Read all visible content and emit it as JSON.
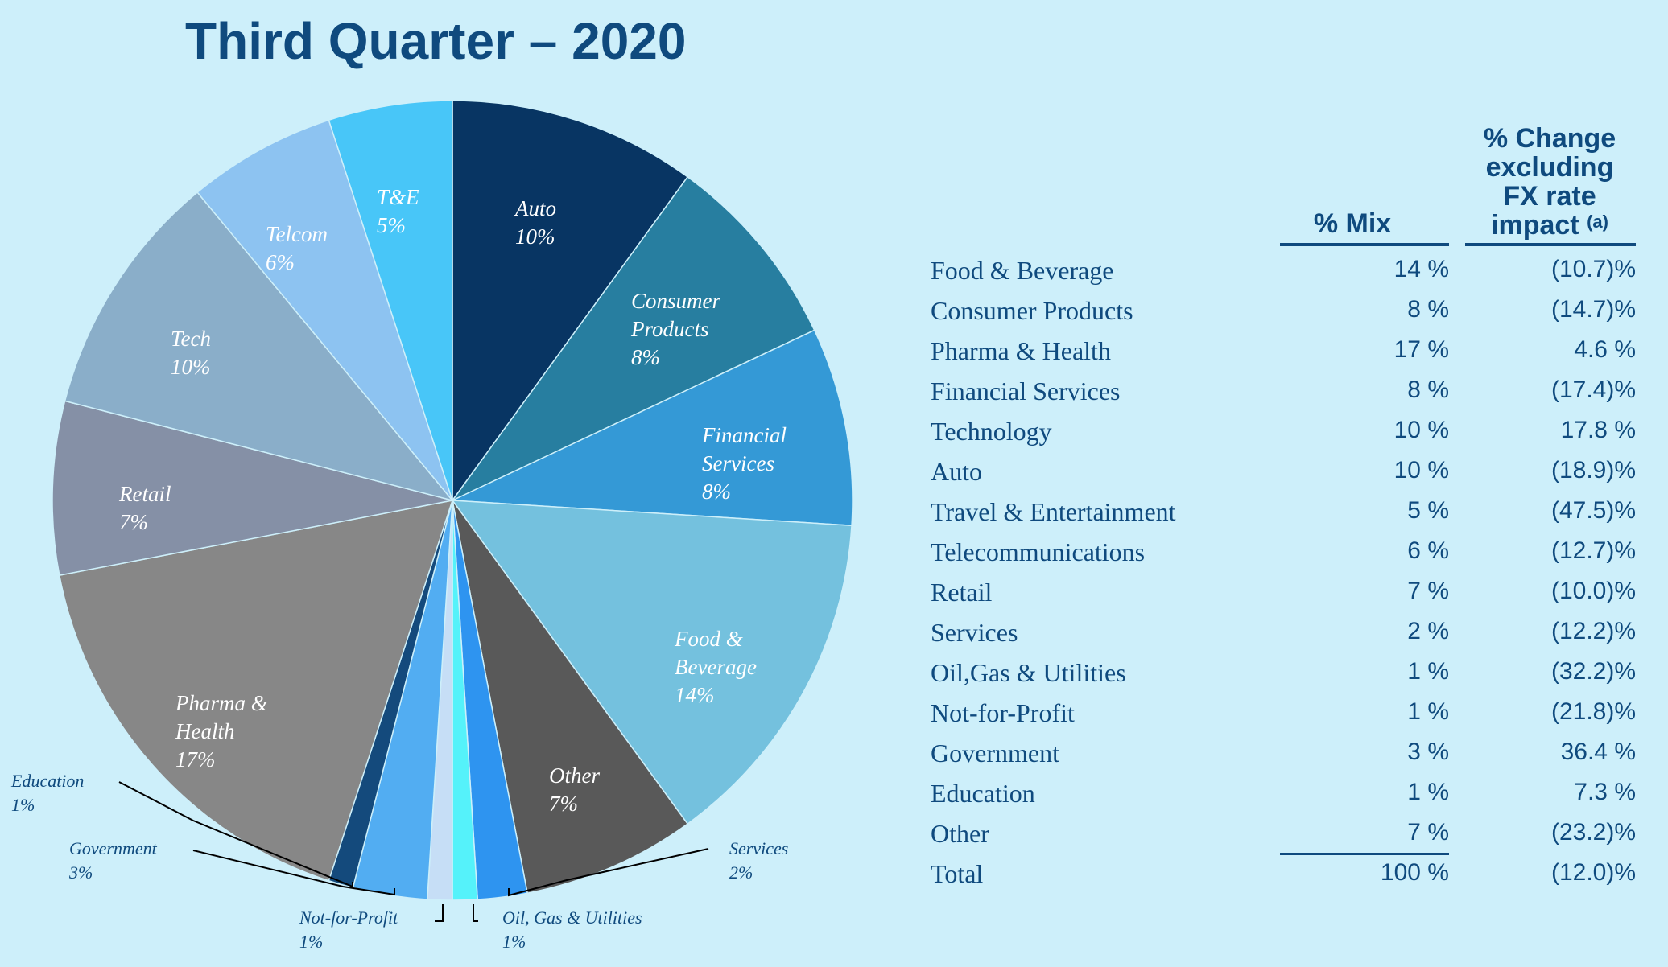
{
  "title": "Third Quarter – 2020",
  "chart_data": {
    "type": "pie",
    "title": "Third Quarter – 2020",
    "start_angle_deg": 0,
    "direction": "clockwise",
    "slices": [
      {
        "label": "Auto",
        "label_lines": [
          "Auto",
          "10%"
        ],
        "value": 10,
        "pct_label": "10%",
        "color": "#083563",
        "label_color": "#ffffff"
      },
      {
        "label": "Consumer Products",
        "label_lines": [
          "Consumer",
          "Products",
          "8%"
        ],
        "value": 8,
        "pct_label": "8%",
        "color": "#277ea0",
        "label_color": "#ffffff"
      },
      {
        "label": "Financial Services",
        "label_lines": [
          "Financial",
          "Services",
          "8%"
        ],
        "value": 8,
        "pct_label": "8%",
        "color": "#3499d6",
        "label_color": "#ffffff"
      },
      {
        "label": "Food & Beverage",
        "label_lines": [
          "Food &",
          "Beverage",
          "14%"
        ],
        "value": 14,
        "pct_label": "14%",
        "color": "#74c1de",
        "label_color": "#ffffff"
      },
      {
        "label": "Other",
        "label_lines": [
          "Other",
          "7%"
        ],
        "value": 7,
        "pct_label": "7%",
        "color": "#595959",
        "label_color": "#ffffff"
      },
      {
        "label": "Services",
        "label_lines": [
          "Services",
          "2%"
        ],
        "value": 2,
        "pct_label": "2%",
        "color": "#2e94f0",
        "label_color": "#0f4a7e",
        "outside": true
      },
      {
        "label": "Oil, Gas & Utilities",
        "label_lines": [
          "Oil, Gas & Utilities",
          "1%"
        ],
        "value": 1,
        "pct_label": "1%",
        "color": "#55f2fa",
        "label_color": "#0f4a7e",
        "outside": true
      },
      {
        "label": "Not-for-Profit",
        "label_lines": [
          "Not-for-Profit",
          "1%"
        ],
        "value": 1,
        "pct_label": "1%",
        "color": "#c6def6",
        "label_color": "#0f4a7e",
        "outside": true
      },
      {
        "label": "Government",
        "label_lines": [
          "Government",
          "3%"
        ],
        "value": 3,
        "pct_label": "3%",
        "color": "#52adf2",
        "label_color": "#0f4a7e",
        "outside": true
      },
      {
        "label": "Education",
        "label_lines": [
          "Education",
          "1%"
        ],
        "value": 1,
        "pct_label": "1%",
        "color": "#144a7c",
        "label_color": "#0f4a7e",
        "outside": true
      },
      {
        "label": "Pharma & Health",
        "label_lines": [
          "Pharma &",
          "Health",
          "17%"
        ],
        "value": 17,
        "pct_label": "17%",
        "color": "#878787",
        "label_color": "#ffffff"
      },
      {
        "label": "Retail",
        "label_lines": [
          "Retail",
          "7%"
        ],
        "value": 7,
        "pct_label": "7%",
        "color": "#8590a6",
        "label_color": "#ffffff"
      },
      {
        "label": "Tech",
        "label_lines": [
          "Tech",
          "10%"
        ],
        "value": 10,
        "pct_label": "10%",
        "color": "#8aaec9",
        "label_color": "#ffffff"
      },
      {
        "label": "Telcom",
        "label_lines": [
          "Telcom",
          "6%"
        ],
        "value": 6,
        "pct_label": "6%",
        "color": "#8dc3f1",
        "label_color": "#ffffff"
      },
      {
        "label": "T&E",
        "label_lines": [
          "T&E",
          "5%"
        ],
        "value": 5,
        "pct_label": "5%",
        "color": "#48c6f8",
        "label_color": "#ffffff"
      }
    ]
  },
  "table": {
    "headers": {
      "mix": "% Mix",
      "change": "% Change\nexcluding\nFX rate\nimpact",
      "change_footnote": "(a)"
    },
    "rows": [
      {
        "name": "Food & Beverage",
        "mix": "14 %",
        "change": "(10.7)%"
      },
      {
        "name": "Consumer Products",
        "mix": "8 %",
        "change": "(14.7)%"
      },
      {
        "name": "Pharma & Health",
        "mix": "17 %",
        "change": "4.6 %"
      },
      {
        "name": "Financial Services",
        "mix": "8 %",
        "change": "(17.4)%"
      },
      {
        "name": "Technology",
        "mix": "10 %",
        "change": "17.8 %"
      },
      {
        "name": "Auto",
        "mix": "10 %",
        "change": "(18.9)%"
      },
      {
        "name": "Travel & Entertainment",
        "mix": "5 %",
        "change": "(47.5)%"
      },
      {
        "name": "Telecommunications",
        "mix": "6 %",
        "change": "(12.7)%"
      },
      {
        "name": "Retail",
        "mix": "7 %",
        "change": "(10.0)%"
      },
      {
        "name": "Services",
        "mix": "2 %",
        "change": "(12.2)%"
      },
      {
        "name": "Oil,Gas & Utilities",
        "mix": "1 %",
        "change": "(32.2)%"
      },
      {
        "name": "Not-for-Profit",
        "mix": "1 %",
        "change": "(21.8)%"
      },
      {
        "name": "Government",
        "mix": "3 %",
        "change": "36.4 %"
      },
      {
        "name": "Education",
        "mix": "1 %",
        "change": "7.3 %"
      },
      {
        "name": "Other",
        "mix": "7 %",
        "change": "(23.2)%"
      }
    ],
    "total": {
      "name": "Total",
      "mix": "100 %",
      "change": "(12.0)%"
    }
  }
}
